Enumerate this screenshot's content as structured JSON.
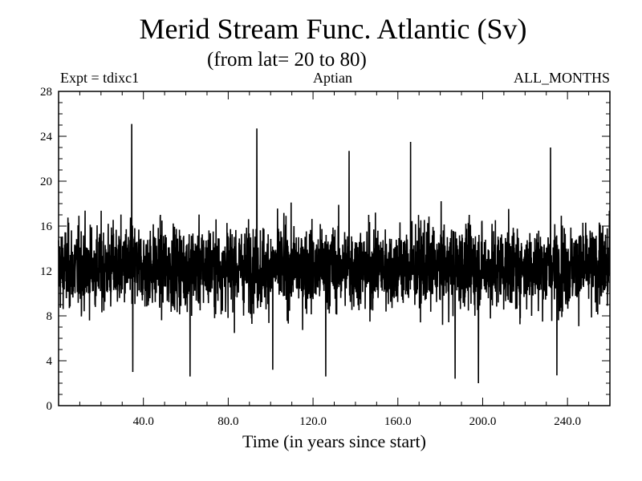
{
  "chart_data": {
    "type": "line",
    "title": "Merid Stream Func. Atlantic (Sv)",
    "subtitle": "(from lat= 20 to 80)",
    "header_left": "Expt = tdixc1",
    "header_center": "Aptian",
    "header_right": "ALL_MONTHS",
    "xlabel": "Time (in years since start)",
    "ylabel": "",
    "xlim": [
      0,
      260
    ],
    "ylim": [
      0,
      28
    ],
    "xticks": [
      40,
      80,
      120,
      160,
      200,
      240
    ],
    "xtick_labels": [
      "40.0",
      "80.0",
      "120.0",
      "160.0",
      "200.0",
      "240.0"
    ],
    "yticks": [
      0,
      4,
      8,
      12,
      16,
      20,
      24,
      28
    ],
    "ytick_labels": [
      "0",
      "4",
      "8",
      "12",
      "16",
      "20",
      "24",
      "28"
    ],
    "series": [
      {
        "name": "Merid Stream Func. Atlantic",
        "sampling": "monthly",
        "mean": 12.3,
        "min": 2.0,
        "max": 25.1,
        "peaks": [
          [
            34.5,
            25.1
          ],
          [
            93.5,
            24.7
          ],
          [
            137.0,
            22.7
          ],
          [
            166.0,
            23.5
          ],
          [
            232.0,
            23.0
          ]
        ],
        "troughs": [
          [
            35.0,
            3.0
          ],
          [
            62.0,
            2.6
          ],
          [
            101.0,
            3.2
          ],
          [
            126.0,
            2.6
          ],
          [
            187.0,
            2.4
          ],
          [
            198.0,
            2.0
          ],
          [
            235.0,
            2.7
          ]
        ]
      }
    ]
  }
}
